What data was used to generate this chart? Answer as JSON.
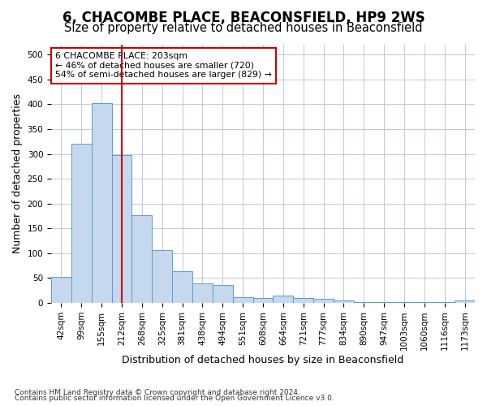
{
  "title": "6, CHACOMBE PLACE, BEACONSFIELD, HP9 2WS",
  "subtitle": "Size of property relative to detached houses in Beaconsfield",
  "xlabel": "Distribution of detached houses by size in Beaconsfield",
  "ylabel": "Number of detached properties",
  "footnote1": "Contains HM Land Registry data © Crown copyright and database right 2024.",
  "footnote2": "Contains public sector information licensed under the Open Government Licence v3.0.",
  "bar_labels": [
    "42sqm",
    "99sqm",
    "155sqm",
    "212sqm",
    "268sqm",
    "325sqm",
    "381sqm",
    "438sqm",
    "494sqm",
    "551sqm",
    "608sqm",
    "664sqm",
    "721sqm",
    "777sqm",
    "834sqm",
    "890sqm",
    "947sqm",
    "1003sqm",
    "1060sqm",
    "1116sqm",
    "1173sqm"
  ],
  "bar_values": [
    53,
    320,
    403,
    297,
    176,
    107,
    64,
    39,
    36,
    11,
    10,
    15,
    10,
    8,
    5,
    2,
    1,
    1,
    1,
    1,
    5
  ],
  "bar_color": "#c5d8ee",
  "bar_edge_color": "#5b9bd5",
  "vline_x_index": 3,
  "vline_color": "#cc0000",
  "ylim": [
    0,
    520
  ],
  "yticks": [
    0,
    50,
    100,
    150,
    200,
    250,
    300,
    350,
    400,
    450,
    500
  ],
  "annotation_text": "6 CHACOMBE PLACE: 203sqm\n← 46% of detached houses are smaller (720)\n54% of semi-detached houses are larger (829) →",
  "annotation_box_color": "#ffffff",
  "annotation_box_edge": "#cc0000",
  "background_color": "#ffffff",
  "grid_color": "#c0c8d8",
  "title_fontsize": 12,
  "subtitle_fontsize": 10.5,
  "axis_label_fontsize": 9,
  "tick_fontsize": 7.5,
  "footnote_fontsize": 6.5
}
